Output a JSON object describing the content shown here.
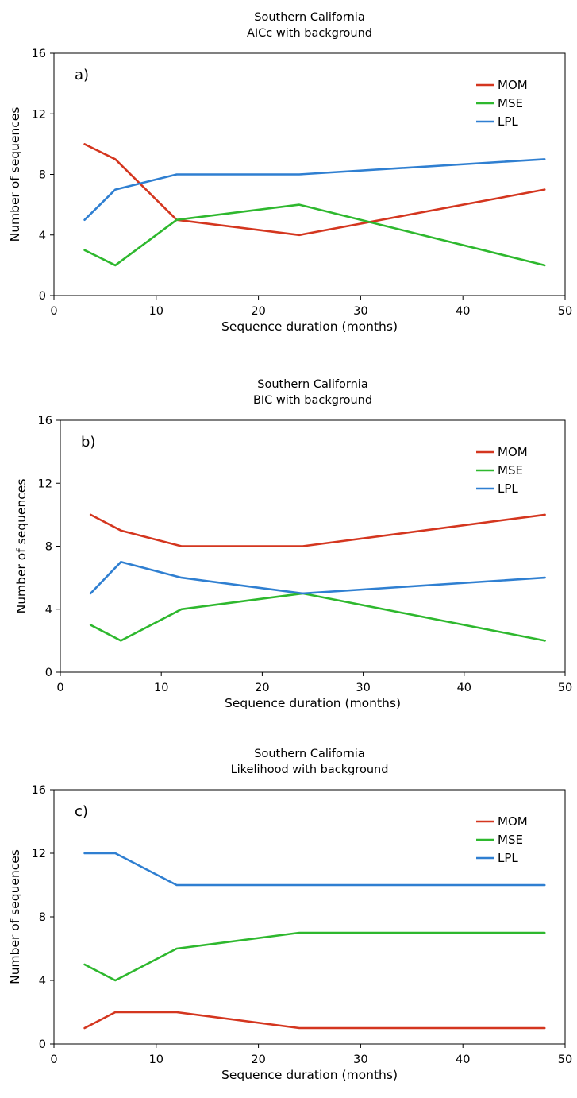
{
  "chart_data": [
    {
      "type": "line",
      "title": "Southern California",
      "subtitle": "AICc with background",
      "panel_label": "a)",
      "xlabel": "Sequence duration (months)",
      "ylabel": "Number of sequences",
      "xlim": [
        0,
        50
      ],
      "ylim": [
        0,
        16
      ],
      "xticks": [
        "0",
        "10",
        "20",
        "30",
        "40",
        "50"
      ],
      "yticks": [
        "0",
        "4",
        "8",
        "12",
        "16"
      ],
      "grid": false,
      "legend": "top-right",
      "x": [
        3,
        6,
        12,
        24,
        48
      ],
      "series": [
        {
          "name": "MOM",
          "color": "#d4361f",
          "values": [
            10,
            9,
            5,
            4,
            7
          ]
        },
        {
          "name": "MSE",
          "color": "#2eb82e",
          "values": [
            3,
            2,
            5,
            6,
            2
          ]
        },
        {
          "name": "LPL",
          "color": "#2f7fd1",
          "values": [
            5,
            7,
            8,
            8,
            9
          ]
        }
      ]
    },
    {
      "type": "line",
      "title": "Southern California",
      "subtitle": "BIC with background",
      "panel_label": "b)",
      "xlabel": "Sequence duration (months)",
      "ylabel": "Number of sequences",
      "xlim": [
        0,
        50
      ],
      "ylim": [
        0,
        16
      ],
      "xticks": [
        "0",
        "10",
        "20",
        "30",
        "40",
        "50"
      ],
      "yticks": [
        "0",
        "4",
        "8",
        "12",
        "16"
      ],
      "grid": false,
      "legend": "top-right",
      "x": [
        3,
        6,
        12,
        24,
        48
      ],
      "series": [
        {
          "name": "MOM",
          "color": "#d4361f",
          "values": [
            10,
            9,
            8,
            8,
            10
          ]
        },
        {
          "name": "MSE",
          "color": "#2eb82e",
          "values": [
            3,
            2,
            4,
            5,
            2
          ]
        },
        {
          "name": "LPL",
          "color": "#2f7fd1",
          "values": [
            5,
            7,
            6,
            5,
            6
          ]
        }
      ]
    },
    {
      "type": "line",
      "title": "Southern California",
      "subtitle": "Likelihood with background",
      "panel_label": "c)",
      "xlabel": "Sequence duration (months)",
      "ylabel": "Number of sequences",
      "xlim": [
        0,
        50
      ],
      "ylim": [
        0,
        16
      ],
      "xticks": [
        "0",
        "10",
        "20",
        "30",
        "40",
        "50"
      ],
      "yticks": [
        "0",
        "4",
        "8",
        "12",
        "16"
      ],
      "grid": false,
      "legend": "top-right",
      "x": [
        3,
        6,
        12,
        24,
        48
      ],
      "series": [
        {
          "name": "MOM",
          "color": "#d4361f",
          "values": [
            1,
            2,
            2,
            1,
            1
          ]
        },
        {
          "name": "MSE",
          "color": "#2eb82e",
          "values": [
            5,
            4,
            6,
            7,
            7
          ]
        },
        {
          "name": "LPL",
          "color": "#2f7fd1",
          "values": [
            12,
            12,
            10,
            10,
            10
          ]
        }
      ]
    }
  ]
}
